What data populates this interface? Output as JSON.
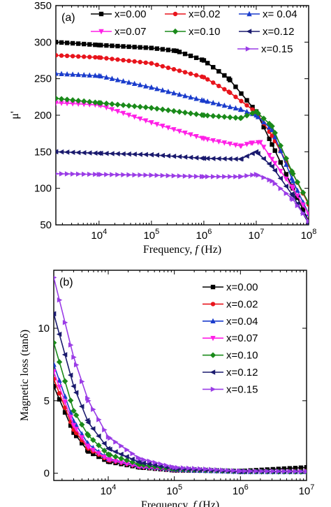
{
  "chart_data": [
    {
      "panel": "(a)",
      "type": "line",
      "xlabel": "Frequency, f (Hz)",
      "ylabel": "μ'",
      "xscale": "log",
      "xlim": [
        1500,
        100000000
      ],
      "ylim": [
        50,
        350
      ],
      "x_ticks": [
        {
          "value": 10000,
          "label": "10^4"
        },
        {
          "value": 100000,
          "label": "10^5"
        },
        {
          "value": 1000000,
          "label": "10^6"
        },
        {
          "value": 10000000,
          "label": "10^7"
        },
        {
          "value": 100000000,
          "label": "10^8"
        }
      ],
      "y_ticks": [
        50,
        100,
        150,
        200,
        250,
        300,
        350
      ],
      "legend_placement": "top",
      "series": [
        {
          "name": "x=0.00",
          "color": "#000000",
          "marker": "square",
          "points": [
            [
              1500,
              300
            ],
            [
              10000,
              296
            ],
            [
              100000,
              292
            ],
            [
              300000,
              288
            ],
            [
              1000000,
              275
            ],
            [
              3000000,
              250
            ],
            [
              10000000,
              205
            ],
            [
              20000000,
              160
            ],
            [
              50000000,
              100
            ],
            [
              100000000,
              55
            ]
          ]
        },
        {
          "name": "x=0.02",
          "color": "#e8141c",
          "marker": "circle",
          "points": [
            [
              1500,
              282
            ],
            [
              10000,
              279
            ],
            [
              100000,
              271
            ],
            [
              1000000,
              252
            ],
            [
              3000000,
              232
            ],
            [
              10000000,
              204
            ],
            [
              20000000,
              172
            ],
            [
              50000000,
              120
            ],
            [
              100000000,
              78
            ]
          ]
        },
        {
          "name": "x= 0.04",
          "color": "#1a3ccc",
          "marker": "triangle-up",
          "points": [
            [
              1500,
              257
            ],
            [
              10000,
              254
            ],
            [
              100000,
              238
            ],
            [
              1000000,
              220
            ],
            [
              5000000,
              208
            ],
            [
              10000000,
              200
            ],
            [
              20000000,
              180
            ],
            [
              50000000,
              110
            ],
            [
              100000000,
              65
            ]
          ]
        },
        {
          "name": "x=0.07",
          "color": "#ff1fe6",
          "marker": "triangle-down",
          "points": [
            [
              1500,
              217
            ],
            [
              10000,
              214
            ],
            [
              100000,
              190
            ],
            [
              1000000,
              168
            ],
            [
              5000000,
              158
            ],
            [
              8000000,
              162
            ],
            [
              12000000,
              163
            ],
            [
              20000000,
              140
            ],
            [
              50000000,
              100
            ],
            [
              100000000,
              65
            ]
          ]
        },
        {
          "name": "x=0.10",
          "color": "#1a8a1a",
          "marker": "diamond",
          "points": [
            [
              1500,
              223
            ],
            [
              10000,
              217
            ],
            [
              100000,
              210
            ],
            [
              1000000,
              200
            ],
            [
              5000000,
              196
            ],
            [
              10000000,
              205
            ],
            [
              20000000,
              185
            ],
            [
              50000000,
              120
            ],
            [
              100000000,
              80
            ]
          ]
        },
        {
          "name": "x=0.12",
          "color": "#1a1a6e",
          "marker": "triangle-left",
          "points": [
            [
              1500,
              150
            ],
            [
              10000,
              148
            ],
            [
              100000,
              146
            ],
            [
              1000000,
              141
            ],
            [
              5000000,
              140
            ],
            [
              10000000,
              150
            ],
            [
              20000000,
              130
            ],
            [
              50000000,
              90
            ],
            [
              100000000,
              52
            ]
          ]
        },
        {
          "name": "x=0.15",
          "color": "#9a3ce6",
          "marker": "triangle-right",
          "points": [
            [
              1500,
              120
            ],
            [
              10000,
              119
            ],
            [
              100000,
              118
            ],
            [
              1000000,
              116
            ],
            [
              5000000,
              116
            ],
            [
              10000000,
              119
            ],
            [
              20000000,
              110
            ],
            [
              50000000,
              85
            ],
            [
              100000000,
              55
            ]
          ]
        }
      ]
    },
    {
      "panel": "(b)",
      "type": "line",
      "xlabel": "Frequency, f (Hz)",
      "ylabel": "Magnetic loss (tanδ)",
      "xscale": "log",
      "xlim": [
        1500,
        10000000
      ],
      "ylim": [
        -0.5,
        14
      ],
      "x_ticks": [
        {
          "value": 10000,
          "label": "10^4"
        },
        {
          "value": 100000,
          "label": "10^5"
        },
        {
          "value": 1000000,
          "label": "10^6"
        },
        {
          "value": 10000000,
          "label": "10^7"
        }
      ],
      "y_ticks": [
        0,
        5,
        10
      ],
      "legend_placement": "right",
      "series": [
        {
          "name": "x=0.00",
          "color": "#000000",
          "marker": "square",
          "points": [
            [
              1500,
              6.0
            ],
            [
              3000,
              2.8
            ],
            [
              5000,
              1.5
            ],
            [
              10000,
              0.8
            ],
            [
              30000,
              0.4
            ],
            [
              100000,
              0.2
            ],
            [
              1000000,
              0.15
            ],
            [
              10000000,
              0.4
            ]
          ]
        },
        {
          "name": "x=0.02",
          "color": "#e8141c",
          "marker": "circle",
          "points": [
            [
              1500,
              6.5
            ],
            [
              3000,
              3.0
            ],
            [
              5000,
              1.7
            ],
            [
              10000,
              0.9
            ],
            [
              30000,
              0.45
            ],
            [
              100000,
              0.22
            ],
            [
              1000000,
              0.12
            ],
            [
              10000000,
              0.15
            ]
          ]
        },
        {
          "name": "x=0.04",
          "color": "#1a3ccc",
          "marker": "triangle-up",
          "points": [
            [
              1500,
              7.5
            ],
            [
              3000,
              3.6
            ],
            [
              5000,
              2.0
            ],
            [
              10000,
              1.0
            ],
            [
              30000,
              0.5
            ],
            [
              100000,
              0.25
            ],
            [
              1000000,
              0.1
            ],
            [
              10000000,
              0.1
            ]
          ]
        },
        {
          "name": "x=0.07",
          "color": "#ff1fe6",
          "marker": "triangle-down",
          "points": [
            [
              1500,
              7.0
            ],
            [
              3000,
              3.3
            ],
            [
              5000,
              1.8
            ],
            [
              10000,
              0.95
            ],
            [
              30000,
              0.45
            ],
            [
              100000,
              0.22
            ],
            [
              1000000,
              0.1
            ],
            [
              10000000,
              0.1
            ]
          ]
        },
        {
          "name": "x=0.10",
          "color": "#1a8a1a",
          "marker": "diamond",
          "points": [
            [
              1500,
              9.0
            ],
            [
              3000,
              4.3
            ],
            [
              5000,
              2.6
            ],
            [
              10000,
              1.3
            ],
            [
              30000,
              0.6
            ],
            [
              100000,
              0.28
            ],
            [
              1000000,
              0.12
            ],
            [
              10000000,
              0.1
            ]
          ]
        },
        {
          "name": "x=0.12",
          "color": "#1a1a6e",
          "marker": "triangle-left",
          "points": [
            [
              1500,
              11.0
            ],
            [
              3000,
              6.0
            ],
            [
              5000,
              3.5
            ],
            [
              10000,
              1.7
            ],
            [
              30000,
              0.75
            ],
            [
              100000,
              0.32
            ],
            [
              1000000,
              0.12
            ],
            [
              10000000,
              0.12
            ]
          ]
        },
        {
          "name": "x=0.15",
          "color": "#9a3ce6",
          "marker": "triangle-right",
          "points": [
            [
              1500,
              13.5
            ],
            [
              3000,
              8.0
            ],
            [
              5000,
              5.0
            ],
            [
              10000,
              2.5
            ],
            [
              30000,
              1.0
            ],
            [
              100000,
              0.4
            ],
            [
              1000000,
              0.15
            ],
            [
              10000000,
              0.12
            ]
          ]
        }
      ]
    }
  ]
}
